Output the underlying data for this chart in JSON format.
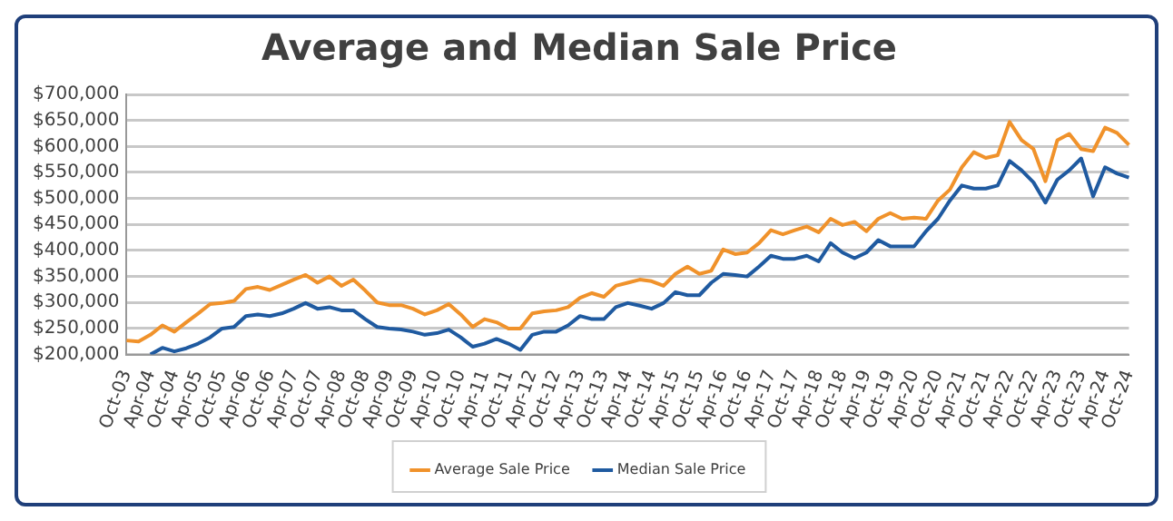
{
  "chart_data": {
    "type": "line",
    "title": "Average and Median Sale Price",
    "categories": [
      "Oct-03",
      null,
      "Apr-04",
      null,
      "Oct-04",
      null,
      "Apr-05",
      null,
      "Oct-05",
      null,
      "Apr-06",
      null,
      "Oct-06",
      null,
      "Apr-07",
      null,
      "Oct-07",
      null,
      "Apr-08",
      null,
      "Oct-08",
      null,
      "Apr-09",
      null,
      "Oct-09",
      null,
      "Apr-10",
      null,
      "Oct-10",
      null,
      "Apr-11",
      null,
      "Oct-11",
      null,
      "Apr-12",
      null,
      "Oct-12",
      null,
      "Apr-13",
      null,
      "Oct-13",
      null,
      "Apr-14",
      null,
      "Oct-14",
      null,
      "Apr-15",
      null,
      "Oct-15",
      null,
      "Apr-16",
      null,
      "Oct-16",
      null,
      "Apr-17",
      null,
      "Oct-17",
      null,
      "Apr-18",
      null,
      "Oct-18",
      null,
      "Apr-19",
      null,
      "Oct-19",
      null,
      "Apr-20",
      null,
      "Oct-20",
      null,
      "Apr-21",
      null,
      "Oct-21",
      null,
      "Apr-22",
      null,
      "Oct-22",
      null,
      "Apr-23",
      null,
      "Oct-23",
      null,
      "Apr-24",
      null,
      "Oct-24"
    ],
    "series": [
      {
        "name": "Average Sale Price",
        "color": "#f0922b",
        "values": [
          227000,
          225000,
          238000,
          256000,
          244000,
          262000,
          279000,
          297000,
          299000,
          303000,
          326000,
          330000,
          324000,
          334000,
          344000,
          353000,
          338000,
          350000,
          332000,
          344000,
          323000,
          300000,
          295000,
          295000,
          288000,
          277000,
          285000,
          297000,
          277000,
          253000,
          268000,
          262000,
          250000,
          250000,
          279000,
          283000,
          285000,
          291000,
          309000,
          318000,
          311000,
          332000,
          338000,
          344000,
          341000,
          332000,
          355000,
          369000,
          355000,
          361000,
          402000,
          393000,
          396000,
          414000,
          439000,
          431000,
          439000,
          446000,
          435000,
          461000,
          449000,
          455000,
          437000,
          461000,
          472000,
          461000,
          463000,
          461000,
          496000,
          517000,
          560000,
          589000,
          578000,
          583000,
          647000,
          612000,
          595000,
          533000,
          612000,
          624000,
          595000,
          591000,
          636000,
          626000,
          603000
        ]
      },
      {
        "name": "Median Sale Price",
        "color": "#1f5aa0",
        "values": [
          null,
          null,
          200000,
          213000,
          206000,
          212000,
          221000,
          233000,
          250000,
          253000,
          274000,
          277000,
          274000,
          279000,
          288000,
          299000,
          288000,
          291000,
          285000,
          285000,
          268000,
          253000,
          250000,
          248000,
          244000,
          238000,
          241000,
          248000,
          233000,
          215000,
          221000,
          230000,
          221000,
          209000,
          238000,
          244000,
          244000,
          256000,
          274000,
          268000,
          268000,
          291000,
          299000,
          294000,
          288000,
          299000,
          320000,
          314000,
          314000,
          338000,
          355000,
          353000,
          350000,
          369000,
          390000,
          384000,
          384000,
          390000,
          379000,
          414000,
          396000,
          385000,
          396000,
          420000,
          408000,
          408000,
          408000,
          437000,
          461000,
          496000,
          525000,
          519000,
          519000,
          525000,
          572000,
          554000,
          531000,
          492000,
          536000,
          554000,
          577000,
          504000,
          560000,
          548000,
          540000
        ]
      }
    ],
    "ylim": [
      200000,
      700000
    ],
    "yticks": [
      {
        "value": 200000,
        "label": "$200,000"
      },
      {
        "value": 250000,
        "label": "$250,000"
      },
      {
        "value": 300000,
        "label": "$300,000"
      },
      {
        "value": 350000,
        "label": "$350,000"
      },
      {
        "value": 400000,
        "label": "$400,000"
      },
      {
        "value": 450000,
        "label": "$450,000"
      },
      {
        "value": 500000,
        "label": "$500,000"
      },
      {
        "value": 550000,
        "label": "$550,000"
      },
      {
        "value": 600000,
        "label": "$600,000"
      },
      {
        "value": 650000,
        "label": "$650,000"
      },
      {
        "value": 700000,
        "label": "$700,000"
      }
    ],
    "grid": "y",
    "legend": "bottom",
    "marker": "none",
    "line_style": "solid"
  }
}
